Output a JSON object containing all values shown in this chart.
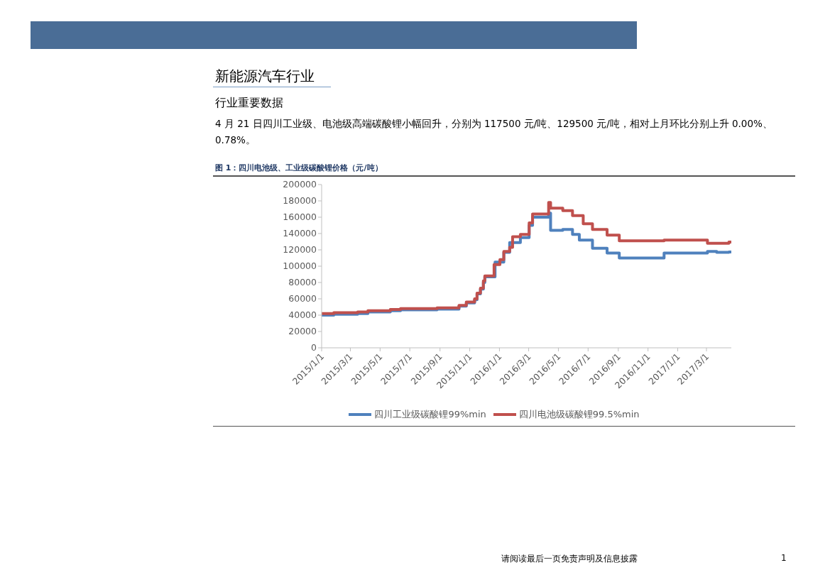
{
  "chart_data": {
    "type": "step",
    "title": "图 1：四川电池级、工业级碳酸锂价格（元/吨）",
    "annotations": [
      "新能源汽车行业",
      "行业重要数据",
      "4 月 21 日四川工业级、电池级高端碳酸锂小幅回升，分别为 117500 元/吨、129500 元/吨，相对上月环比分别上升 0.00%、0.78%。",
      "请阅读最后一页免责声明及信息披露",
      "1"
    ],
    "series": [
      {
        "name": "四川工业级碳酸锂99%min",
        "color": "#4f81bd",
        "x": [
          "2015-01-01",
          "2015-01-26",
          "2015-03-16",
          "2015-04-06",
          "2015-05-22",
          "2015-06-12",
          "2015-08-26",
          "2015-10-10",
          "2015-10-25",
          "2015-11-11",
          "2015-11-16",
          "2015-11-23",
          "2015-11-29",
          "2015-12-02",
          "2015-12-23",
          "2016-01-10",
          "2016-01-22",
          "2016-02-13",
          "2016-03-02",
          "2016-03-09",
          "2016-04-11",
          "2016-04-15",
          "2016-05-10",
          "2016-05-30",
          "2016-06-13",
          "2016-07-10",
          "2016-08-09",
          "2016-09-03",
          "2016-12-04",
          "2017-03-03",
          "2017-03-22",
          "2017-04-16",
          "2017-04-21"
        ],
        "values": [
          40000,
          41000,
          42000,
          44000,
          45500,
          46500,
          47500,
          51000,
          55000,
          59000,
          66000,
          72000,
          80000,
          87000,
          105000,
          117000,
          129000,
          135000,
          150000,
          160000,
          165000,
          144000,
          145000,
          139000,
          132000,
          122000,
          116000,
          110000,
          116000,
          118000,
          117000,
          117500,
          117500
        ]
      },
      {
        "name": "四川电池级碳酸锂99.5%min",
        "color": "#c0504d",
        "x": [
          "2015-01-01",
          "2015-01-26",
          "2015-03-16",
          "2015-04-06",
          "2015-05-22",
          "2015-06-12",
          "2015-08-26",
          "2015-10-10",
          "2015-10-25",
          "2015-11-11",
          "2015-11-16",
          "2015-11-23",
          "2015-11-29",
          "2015-12-02",
          "2015-12-21",
          "2016-01-02",
          "2016-01-10",
          "2016-01-22",
          "2016-01-28",
          "2016-02-13",
          "2016-03-02",
          "2016-03-09",
          "2016-04-11",
          "2016-04-15",
          "2016-05-10",
          "2016-05-30",
          "2016-06-21",
          "2016-07-10",
          "2016-08-09",
          "2016-09-03",
          "2016-12-04",
          "2017-03-03",
          "2017-04-16",
          "2017-04-21"
        ],
        "values": [
          42000,
          43000,
          44000,
          45500,
          47000,
          48000,
          49000,
          52000,
          56000,
          60000,
          67000,
          73000,
          82000,
          88000,
          102000,
          108000,
          118000,
          123000,
          136000,
          139000,
          153000,
          164000,
          178000,
          171000,
          168000,
          162000,
          152000,
          145000,
          138000,
          131000,
          132000,
          128000,
          129500,
          129500
        ]
      }
    ],
    "xlim": [
      "2015-01-01",
      "2017-04-21"
    ],
    "xticks": [
      {
        "value": "2015-01-01",
        "label": "2015/1/1"
      },
      {
        "value": "2015-03-01",
        "label": "2015/3/1"
      },
      {
        "value": "2015-05-01",
        "label": "2015/5/1"
      },
      {
        "value": "2015-07-01",
        "label": "2015/7/1"
      },
      {
        "value": "2015-09-01",
        "label": "2015/9/1"
      },
      {
        "value": "2015-11-01",
        "label": "2015/11/1"
      },
      {
        "value": "2016-01-01",
        "label": "2016/1/1"
      },
      {
        "value": "2016-03-01",
        "label": "2016/3/1"
      },
      {
        "value": "2016-05-01",
        "label": "2016/5/1"
      },
      {
        "value": "2016-07-01",
        "label": "2016/7/1"
      },
      {
        "value": "2016-09-01",
        "label": "2016/9/1"
      },
      {
        "value": "2016-11-01",
        "label": "2016/11/1"
      },
      {
        "value": "2017-01-01",
        "label": "2017/1/1"
      },
      {
        "value": "2017-03-01",
        "label": "2017/3/1"
      }
    ],
    "ylim": [
      0,
      200000
    ],
    "yticks": [
      0,
      20000,
      40000,
      60000,
      80000,
      100000,
      120000,
      140000,
      160000,
      180000,
      200000
    ],
    "grid": false,
    "legend": "bottom"
  }
}
